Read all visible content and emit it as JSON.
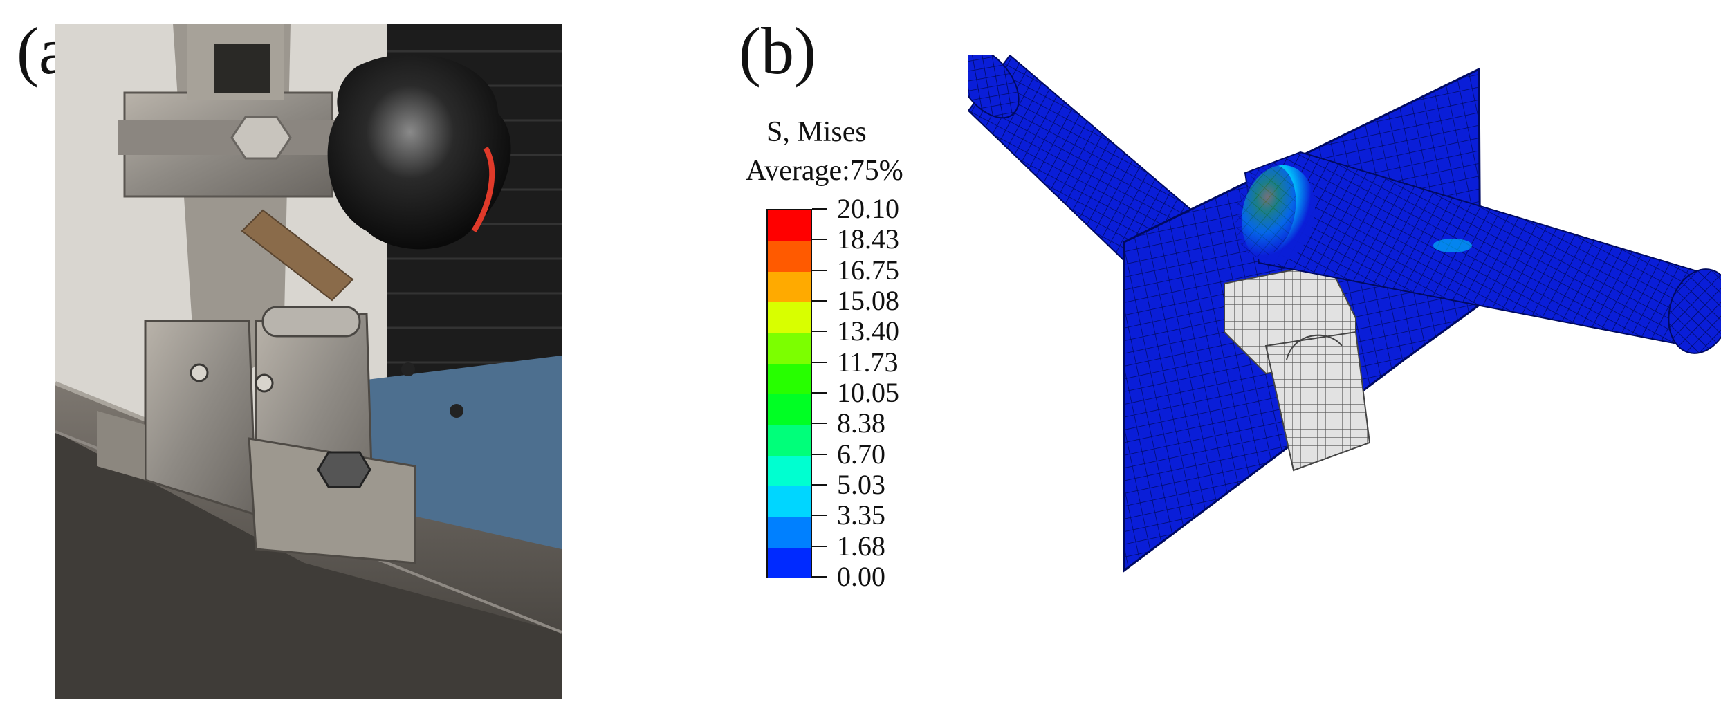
{
  "panels": {
    "a": {
      "label": "(a)"
    },
    "b": {
      "label": "(b)"
    }
  },
  "legend": {
    "title_line1": "S, Mises",
    "title_line2": "Average:75%",
    "values": [
      "20.10",
      "18.43",
      "16.75",
      "15.08",
      "13.40",
      "11.73",
      "10.05",
      "8.38",
      "6.70",
      "5.03",
      "3.35",
      "1.68",
      "0.00"
    ],
    "colors": [
      "#ff0000",
      "#ff5a00",
      "#ffaa00",
      "#d8ff00",
      "#7cff00",
      "#27ff00",
      "#00ff24",
      "#00ff7a",
      "#00ffd0",
      "#00d6ff",
      "#0080ff",
      "#002aff"
    ]
  },
  "colors": {
    "mesh_blue": "#0a1ed8",
    "mesh_line": "#000a60",
    "support_grey": "#d8d8d8",
    "hot_spot": "#33ff22"
  }
}
